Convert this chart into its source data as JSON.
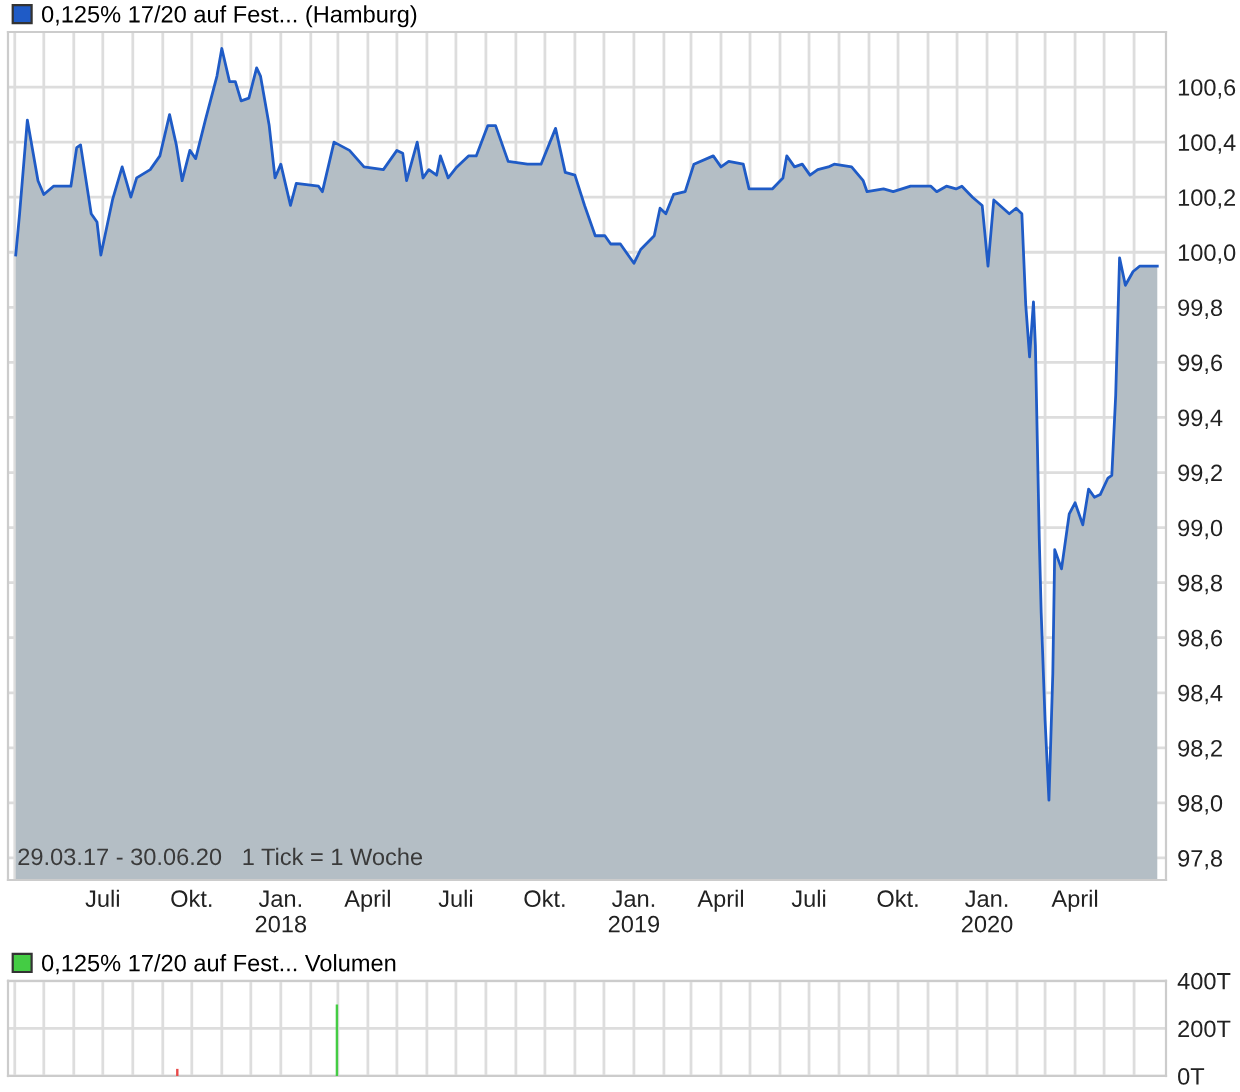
{
  "chart_data": [
    {
      "type": "area",
      "legend": "top left",
      "grid": true,
      "xlim": [
        "2017-03-25",
        "2020-07-04"
      ],
      "ylim": [
        97.72,
        100.8
      ],
      "xticks": [
        {
          "value": "2017-04-01",
          "label": null
        },
        {
          "value": "2017-05-01",
          "label": null
        },
        {
          "value": "2017-06-01",
          "label": null
        },
        {
          "value": "2017-07-01",
          "label": "Juli"
        },
        {
          "value": "2017-08-01",
          "label": null
        },
        {
          "value": "2017-09-01",
          "label": null
        },
        {
          "value": "2017-10-01",
          "label": "Okt."
        },
        {
          "value": "2017-11-01",
          "label": null
        },
        {
          "value": "2017-12-01",
          "label": null
        },
        {
          "value": "2018-01-01",
          "label": "Jan.\n2018"
        },
        {
          "value": "2018-02-01",
          "label": null
        },
        {
          "value": "2018-03-01",
          "label": null
        },
        {
          "value": "2018-04-01",
          "label": "April"
        },
        {
          "value": "2018-05-01",
          "label": null
        },
        {
          "value": "2018-06-01",
          "label": null
        },
        {
          "value": "2018-07-01",
          "label": "Juli"
        },
        {
          "value": "2018-08-01",
          "label": null
        },
        {
          "value": "2018-09-01",
          "label": null
        },
        {
          "value": "2018-10-01",
          "label": "Okt."
        },
        {
          "value": "2018-11-01",
          "label": null
        },
        {
          "value": "2018-12-01",
          "label": null
        },
        {
          "value": "2019-01-01",
          "label": "Jan.\n2019"
        },
        {
          "value": "2019-02-01",
          "label": null
        },
        {
          "value": "2019-03-01",
          "label": null
        },
        {
          "value": "2019-04-01",
          "label": "April"
        },
        {
          "value": "2019-05-01",
          "label": null
        },
        {
          "value": "2019-06-01",
          "label": null
        },
        {
          "value": "2019-07-01",
          "label": "Juli"
        },
        {
          "value": "2019-08-01",
          "label": null
        },
        {
          "value": "2019-09-01",
          "label": null
        },
        {
          "value": "2019-10-01",
          "label": "Okt."
        },
        {
          "value": "2019-11-01",
          "label": null
        },
        {
          "value": "2019-12-01",
          "label": null
        },
        {
          "value": "2020-01-01",
          "label": "Jan.\n2020"
        },
        {
          "value": "2020-02-01",
          "label": null
        },
        {
          "value": "2020-03-01",
          "label": null
        },
        {
          "value": "2020-04-01",
          "label": "April"
        },
        {
          "value": "2020-05-01",
          "label": null
        },
        {
          "value": "2020-06-01",
          "label": null
        }
      ],
      "yticks": [
        {
          "value": 97.8,
          "label": "97,8"
        },
        {
          "value": 98.0,
          "label": "98,0"
        },
        {
          "value": 98.2,
          "label": "98,2"
        },
        {
          "value": 98.4,
          "label": "98,4"
        },
        {
          "value": 98.6,
          "label": "98,6"
        },
        {
          "value": 98.8,
          "label": "98,8"
        },
        {
          "value": 99.0,
          "label": "99,0"
        },
        {
          "value": 99.2,
          "label": "99,2"
        },
        {
          "value": 99.4,
          "label": "99,4"
        },
        {
          "value": 99.6,
          "label": "99,6"
        },
        {
          "value": 99.8,
          "label": "99,8"
        },
        {
          "value": 100.0,
          "label": "100,0"
        },
        {
          "value": 100.2,
          "label": "100,2"
        },
        {
          "value": 100.4,
          "label": "100,4"
        },
        {
          "value": 100.6,
          "label": "100,6"
        }
      ],
      "annotations": [
        "29.03.17 - 30.06.20   1 Tick = 1 Woche"
      ],
      "x": [
        "2017-04-02",
        "2017-04-06",
        "2017-04-14",
        "2017-04-25",
        "2017-05-01",
        "2017-05-11",
        "2017-05-29",
        "2017-06-04",
        "2017-06-08",
        "2017-06-19",
        "2017-06-25",
        "2017-06-29",
        "2017-07-11",
        "2017-07-21",
        "2017-07-30",
        "2017-08-05",
        "2017-08-19",
        "2017-08-29",
        "2017-09-08",
        "2017-09-15",
        "2017-09-21",
        "2017-09-29",
        "2017-10-05",
        "2017-10-15",
        "2017-10-27",
        "2017-11-01",
        "2017-11-09",
        "2017-11-15",
        "2017-11-21",
        "2017-11-29",
        "2017-12-07",
        "2017-12-11",
        "2017-12-20",
        "2017-12-26",
        "2018-01-01",
        "2018-01-11",
        "2018-01-17",
        "2018-02-09",
        "2018-02-13",
        "2018-02-25",
        "2018-03-13",
        "2018-03-28",
        "2018-04-17",
        "2018-05-01",
        "2018-05-07",
        "2018-05-11",
        "2018-05-22",
        "2018-05-28",
        "2018-06-03",
        "2018-06-11",
        "2018-06-15",
        "2018-06-23",
        "2018-07-02",
        "2018-07-14",
        "2018-07-22",
        "2018-08-03",
        "2018-08-11",
        "2018-08-24",
        "2018-09-13",
        "2018-09-27",
        "2018-10-12",
        "2018-10-22",
        "2018-11-01",
        "2018-11-11",
        "2018-11-22",
        "2018-12-02",
        "2018-12-08",
        "2018-12-18",
        "2019-01-01",
        "2019-01-08",
        "2019-01-22",
        "2019-01-28",
        "2019-02-03",
        "2019-02-11",
        "2019-02-23",
        "2019-03-04",
        "2019-03-24",
        "2019-04-01",
        "2019-04-09",
        "2019-04-24",
        "2019-04-30",
        "2019-05-24",
        "2019-06-04",
        "2019-06-08",
        "2019-06-16",
        "2019-06-24",
        "2019-07-02",
        "2019-07-10",
        "2019-07-21",
        "2019-07-27",
        "2019-08-14",
        "2019-08-26",
        "2019-08-30",
        "2019-09-16",
        "2019-09-26",
        "2019-10-14",
        "2019-11-04",
        "2019-11-10",
        "2019-11-20",
        "2019-11-30",
        "2019-12-06",
        "2019-12-17",
        "2019-12-27",
        "2020-01-02",
        "2020-01-08",
        "2020-01-24",
        "2020-01-31",
        "2020-02-06",
        "2020-02-10",
        "2020-02-14",
        "2020-02-18",
        "2020-02-20",
        "2020-02-24",
        "2020-02-26",
        "2020-03-01",
        "2020-03-05",
        "2020-03-09",
        "2020-03-11",
        "2020-03-18",
        "2020-03-26",
        "2020-04-01",
        "2020-04-09",
        "2020-04-15",
        "2020-04-21",
        "2020-04-27",
        "2020-05-05",
        "2020-05-09",
        "2020-05-13",
        "2020-05-17",
        "2020-05-23",
        "2020-05-31",
        "2020-06-07",
        "2020-06-15",
        "2020-06-25"
      ],
      "series": [
        {
          "name": "0,125% 17/20 auf Fest... (Hamburg)",
          "color": "#1f5bc6",
          "values": [
            99.99,
            100.14,
            100.48,
            100.26,
            100.21,
            100.24,
            100.24,
            100.38,
            100.39,
            100.14,
            100.11,
            99.99,
            100.19,
            100.31,
            100.2,
            100.27,
            100.3,
            100.35,
            100.5,
            100.39,
            100.26,
            100.37,
            100.34,
            100.48,
            100.64,
            100.74,
            100.62,
            100.62,
            100.55,
            100.56,
            100.67,
            100.64,
            100.46,
            100.27,
            100.32,
            100.17,
            100.25,
            100.24,
            100.22,
            100.4,
            100.37,
            100.31,
            100.3,
            100.37,
            100.36,
            100.26,
            100.4,
            100.27,
            100.3,
            100.28,
            100.35,
            100.27,
            100.31,
            100.35,
            100.35,
            100.46,
            100.46,
            100.33,
            100.32,
            100.32,
            100.45,
            100.29,
            100.28,
            100.17,
            100.06,
            100.06,
            100.03,
            100.03,
            99.96,
            100.01,
            100.06,
            100.16,
            100.14,
            100.21,
            100.22,
            100.32,
            100.35,
            100.31,
            100.33,
            100.32,
            100.23,
            100.23,
            100.27,
            100.35,
            100.31,
            100.32,
            100.28,
            100.3,
            100.31,
            100.32,
            100.31,
            100.26,
            100.22,
            100.23,
            100.22,
            100.24,
            100.24,
            100.22,
            100.24,
            100.23,
            100.24,
            100.2,
            100.17,
            99.95,
            100.19,
            100.14,
            100.16,
            100.14,
            99.81,
            99.62,
            99.82,
            99.66,
            98.96,
            98.69,
            98.3,
            98.01,
            98.47,
            98.92,
            98.85,
            99.05,
            99.09,
            99.01,
            99.14,
            99.11,
            99.12,
            99.18,
            99.19,
            99.48,
            99.98,
            99.88,
            99.93,
            99.95,
            99.95,
            99.95
          ]
        }
      ]
    },
    {
      "type": "bar",
      "legend": "top left",
      "grid": true,
      "tick_labels": "y",
      "xlim": [
        "2017-03-25",
        "2020-07-04"
      ],
      "ylim": [
        0,
        400
      ],
      "xticks": [
        {
          "value": "2017-04-01",
          "label": null
        },
        {
          "value": "2017-05-01",
          "label": null
        },
        {
          "value": "2017-06-01",
          "label": null
        },
        {
          "value": "2017-07-01",
          "label": null
        },
        {
          "value": "2017-08-01",
          "label": null
        },
        {
          "value": "2017-09-01",
          "label": null
        },
        {
          "value": "2017-10-01",
          "label": null
        },
        {
          "value": "2017-11-01",
          "label": null
        },
        {
          "value": "2017-12-01",
          "label": null
        },
        {
          "value": "2018-01-01",
          "label": null
        },
        {
          "value": "2018-02-01",
          "label": null
        },
        {
          "value": "2018-03-01",
          "label": null
        },
        {
          "value": "2018-04-01",
          "label": null
        },
        {
          "value": "2018-05-01",
          "label": null
        },
        {
          "value": "2018-06-01",
          "label": null
        },
        {
          "value": "2018-07-01",
          "label": null
        },
        {
          "value": "2018-08-01",
          "label": null
        },
        {
          "value": "2018-09-01",
          "label": null
        },
        {
          "value": "2018-10-01",
          "label": null
        },
        {
          "value": "2018-11-01",
          "label": null
        },
        {
          "value": "2018-12-01",
          "label": null
        },
        {
          "value": "2019-01-01",
          "label": null
        },
        {
          "value": "2019-02-01",
          "label": null
        },
        {
          "value": "2019-03-01",
          "label": null
        },
        {
          "value": "2019-04-01",
          "label": null
        },
        {
          "value": "2019-05-01",
          "label": null
        },
        {
          "value": "2019-06-01",
          "label": null
        },
        {
          "value": "2019-07-01",
          "label": null
        },
        {
          "value": "2019-08-01",
          "label": null
        },
        {
          "value": "2019-09-01",
          "label": null
        },
        {
          "value": "2019-10-01",
          "label": null
        },
        {
          "value": "2019-11-01",
          "label": null
        },
        {
          "value": "2019-12-01",
          "label": null
        },
        {
          "value": "2020-01-01",
          "label": null
        },
        {
          "value": "2020-02-01",
          "label": null
        },
        {
          "value": "2020-03-01",
          "label": null
        },
        {
          "value": "2020-04-01",
          "label": null
        },
        {
          "value": "2020-05-01",
          "label": null
        },
        {
          "value": "2020-06-01",
          "label": null
        }
      ],
      "yticks": [
        {
          "value": 0,
          "label": "0T"
        },
        {
          "value": 200,
          "label": "200T"
        },
        {
          "value": 400,
          "label": "400T"
        }
      ],
      "x": [
        "2017-09-16",
        "2018-02-28"
      ],
      "series": [
        {
          "name": "0,125% 17/20 auf Fest... Volumen",
          "color": "#44cc44",
          "colors": [
            "#e84a4a",
            "#44cc44"
          ],
          "values": [
            30,
            300
          ]
        }
      ]
    }
  ]
}
